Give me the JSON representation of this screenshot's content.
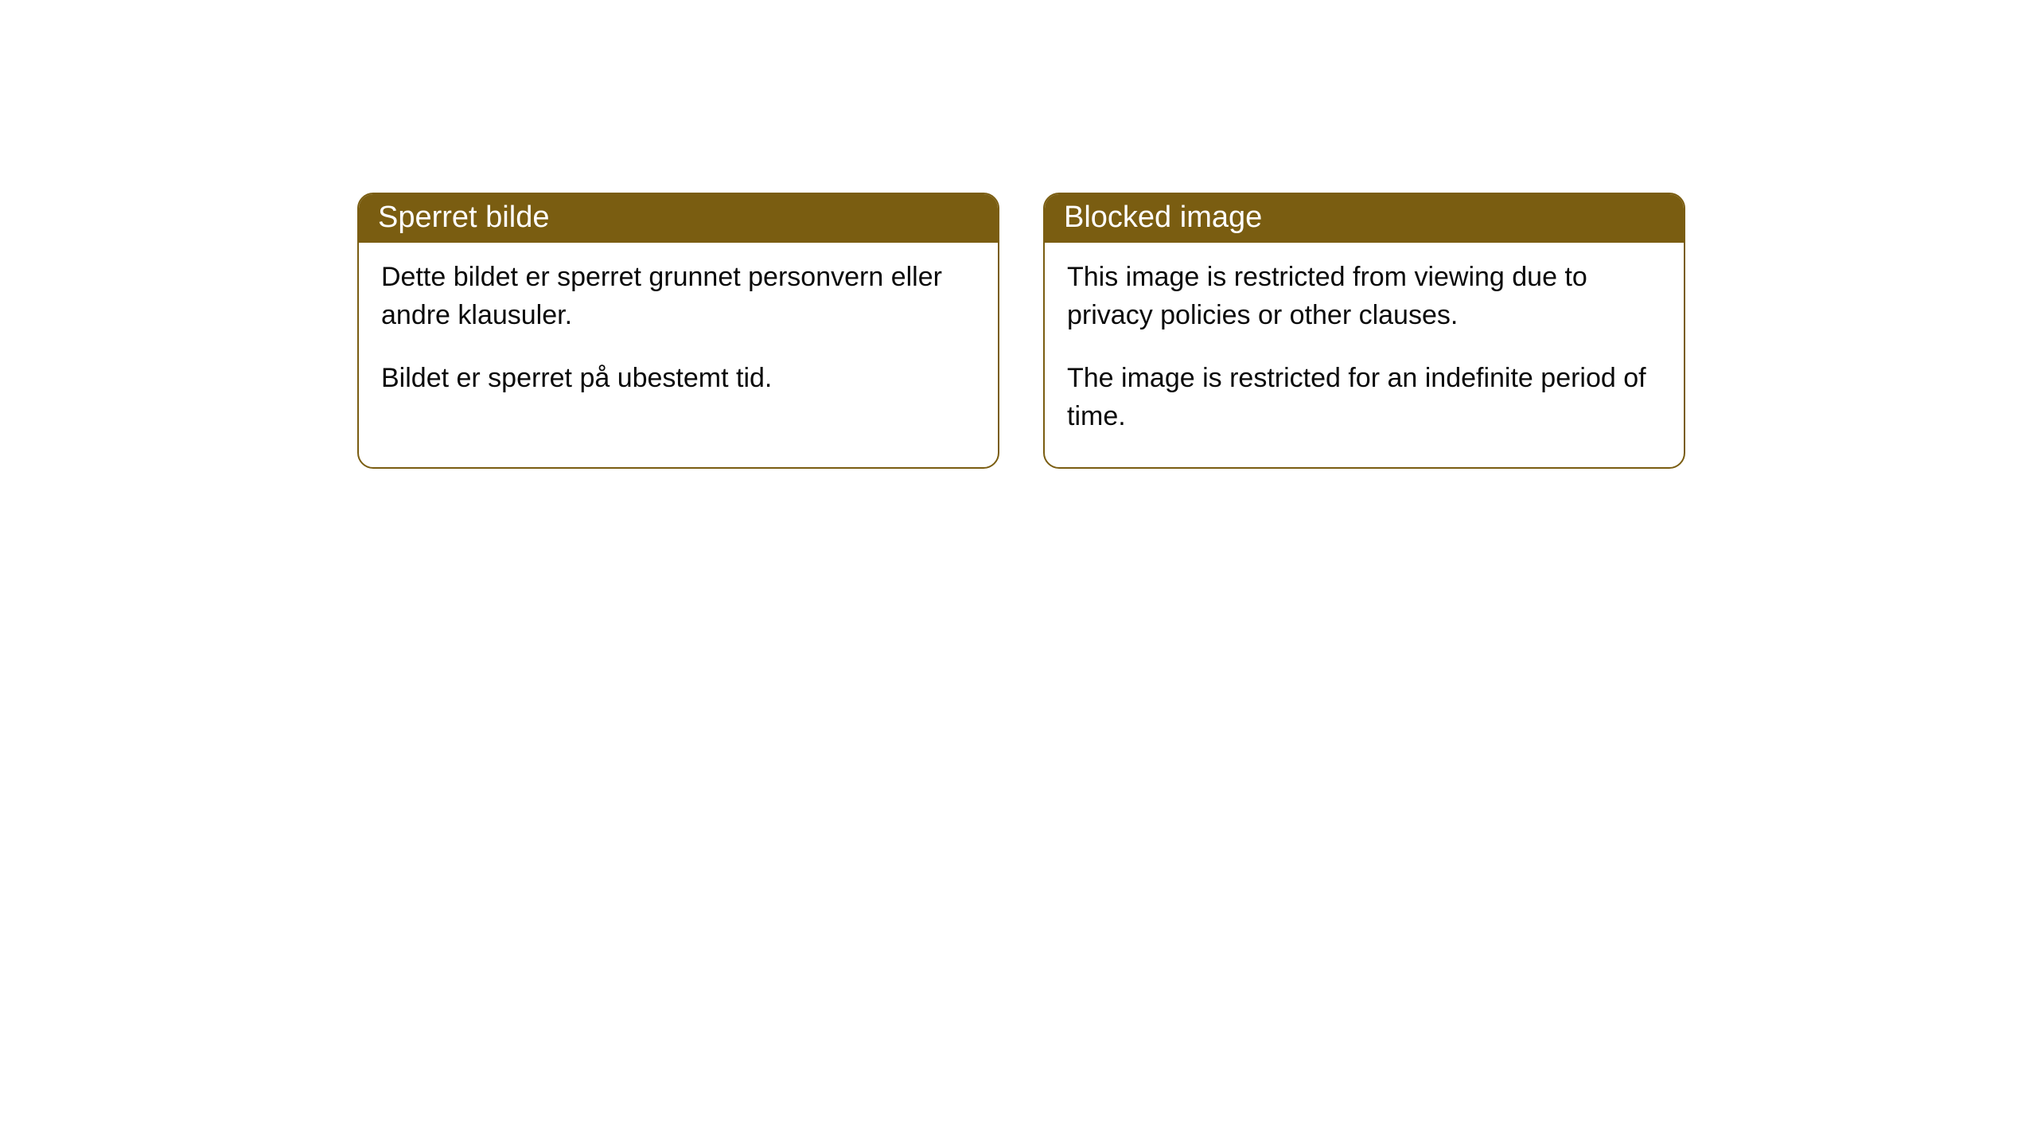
{
  "cards": [
    {
      "title": "Sperret bilde",
      "paragraph1": "Dette bildet er sperret grunnet personvern eller andre klausuler.",
      "paragraph2": "Bildet er sperret på ubestemt tid."
    },
    {
      "title": "Blocked image",
      "paragraph1": "This image is restricted from viewing due to privacy policies or other clauses.",
      "paragraph2": "The image is restricted for an indefinite period of time."
    }
  ],
  "style": {
    "header_background": "#7a5d11",
    "header_text_color": "#ffffff",
    "body_text_color": "#0a0a0a",
    "border_color": "#7a5d11",
    "background_color": "#ffffff",
    "border_radius": 20,
    "header_fontsize": 38,
    "body_fontsize": 34
  }
}
